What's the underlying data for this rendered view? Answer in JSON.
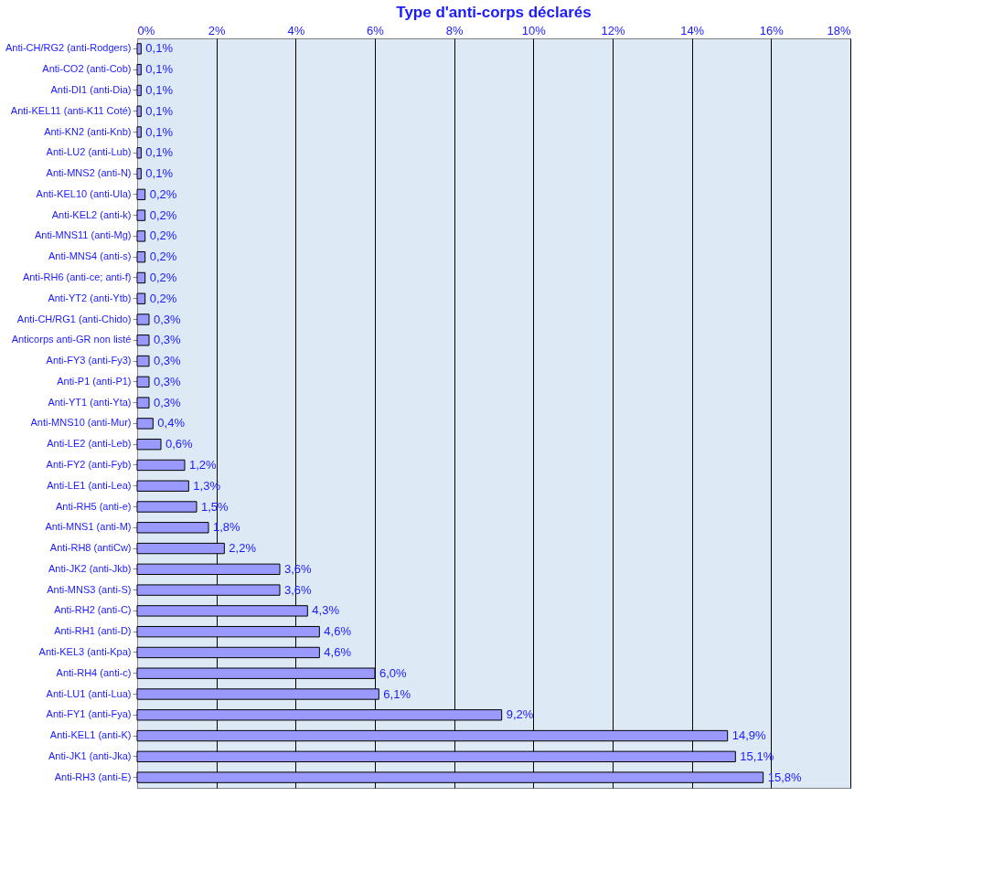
{
  "chart_data": {
    "type": "bar",
    "orientation": "horizontal",
    "title": "Type d'anti-corps déclarés",
    "categories": [
      "Anti-CH/RG2 (anti-Rodgers)",
      "Anti-CO2 (anti-Cob)",
      "Anti-DI1 (anti-Dia)",
      "Anti-KEL11 (anti-K11 Coté)",
      "Anti-KN2 (anti-Knb)",
      "Anti-LU2 (anti-Lub)",
      "Anti-MNS2 (anti-N)",
      "Anti-KEL10 (anti-Ula)",
      "Anti-KEL2 (anti-k)",
      "Anti-MNS11 (anti-Mg)",
      "Anti-MNS4 (anti-s)",
      "Anti-RH6 (anti-ce; anti-f)",
      "Anti-YT2 (anti-Ytb)",
      "Anti-CH/RG1 (anti-Chido)",
      "Anticorps anti-GR non listé",
      "Anti-FY3 (anti-Fy3)",
      "Anti-P1 (anti-P1)",
      "Anti-YT1 (anti-Yta)",
      "Anti-MNS10 (anti-Mur)",
      "Anti-LE2 (anti-Leb)",
      "Anti-FY2 (anti-Fyb)",
      "Anti-LE1 (anti-Lea)",
      "Anti-RH5 (anti-e)",
      "Anti-MNS1 (anti-M)",
      "Anti-RH8 (antiCw)",
      "Anti-JK2 (anti-Jkb)",
      "Anti-MNS3 (anti-S)",
      "Anti-RH2 (anti-C)",
      "Anti-RH1 (anti-D)",
      "Anti-KEL3 (anti-Kpa)",
      "Anti-RH4 (anti-c)",
      "Anti-LU1 (anti-Lua)",
      "Anti-FY1 (anti-Fya)",
      "Anti-KEL1 (anti-K)",
      "Anti-JK1 (anti-Jka)",
      "Anti-RH3 (anti-E)"
    ],
    "values": [
      0.1,
      0.1,
      0.1,
      0.1,
      0.1,
      0.1,
      0.1,
      0.2,
      0.2,
      0.2,
      0.2,
      0.2,
      0.2,
      0.3,
      0.3,
      0.3,
      0.3,
      0.3,
      0.4,
      0.6,
      1.2,
      1.3,
      1.5,
      1.8,
      2.2,
      3.6,
      3.6,
      4.3,
      4.6,
      4.6,
      6.0,
      6.1,
      9.2,
      14.9,
      15.1,
      15.8
    ],
    "value_labels": [
      "0,1%",
      "0,1%",
      "0,1%",
      "0,1%",
      "0,1%",
      "0,1%",
      "0,1%",
      "0,2%",
      "0,2%",
      "0,2%",
      "0,2%",
      "0,2%",
      "0,2%",
      "0,3%",
      "0,3%",
      "0,3%",
      "0,3%",
      "0,3%",
      "0,4%",
      "0,6%",
      "1,2%",
      "1,3%",
      "1,5%",
      "1,8%",
      "2,2%",
      "3,6%",
      "3,6%",
      "4,3%",
      "4,6%",
      "4,6%",
      "6,0%",
      "6,1%",
      "9,2%",
      "14,9%",
      "15,1%",
      "15,8%"
    ],
    "color": "#9999ff",
    "xlim": [
      0,
      18
    ],
    "xticks": [
      {
        "value": 0,
        "label": "0%"
      },
      {
        "value": 2,
        "label": "2%"
      },
      {
        "value": 4,
        "label": "4%"
      },
      {
        "value": 6,
        "label": "6%"
      },
      {
        "value": 8,
        "label": "8%"
      },
      {
        "value": 10,
        "label": "10%"
      },
      {
        "value": 12,
        "label": "12%"
      },
      {
        "value": 14,
        "label": "14%"
      },
      {
        "value": 16,
        "label": "16%"
      },
      {
        "value": 18,
        "label": "18%"
      }
    ],
    "grid": "x"
  }
}
